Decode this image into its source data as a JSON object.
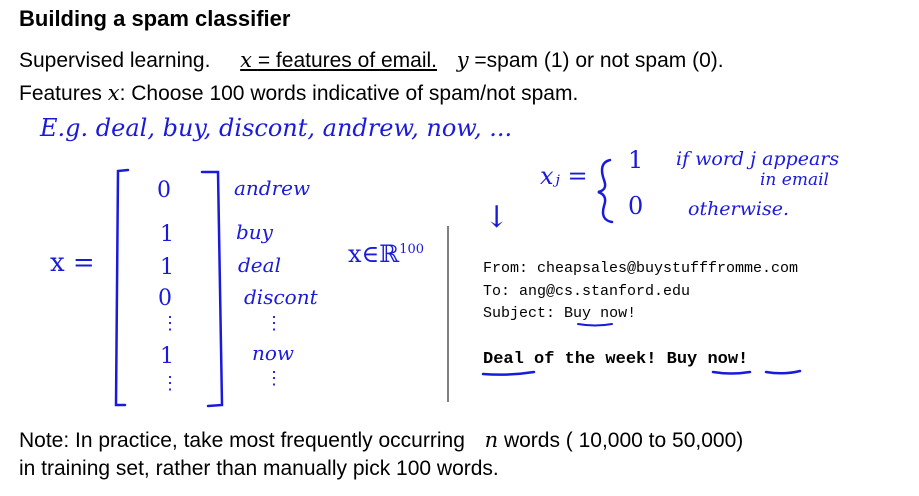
{
  "title": "Building a spam classifier",
  "line1": {
    "prefix": "Supervised learning.",
    "x_var": "x",
    "x_def": "= features of email.",
    "y_var": "y",
    "y_def": "=spam (1) or not spam (0)."
  },
  "line2": {
    "prefix": "Features",
    "var": "x",
    "suffix": ": Choose 100 words indicative of spam/not spam."
  },
  "handwritten": {
    "examples": "E.g. deal, buy, discont, andrew, now, ...",
    "x_label": "x =",
    "vector_entries": [
      "0",
      "1",
      "1",
      "0",
      "⋮",
      "1",
      "⋮"
    ],
    "vector_labels": [
      "andrew",
      "buy",
      "deal",
      "discont",
      "⋮",
      "now",
      "⋮"
    ],
    "membership": "x∈ℝ",
    "membership_exp": "100",
    "xj_label": "xⱼ =",
    "case1_value": "1",
    "case1_cond": "if word j appears",
    "case1_cond2": "in email",
    "case2_value": "0",
    "case2_cond": "otherwise.",
    "arrow": "↓"
  },
  "email": {
    "from": "From: cheapsales@buystufffromme.com",
    "to": "To: ang@cs.stanford.edu",
    "subject_prefix": "Subject:",
    "subject_word": "Buy",
    "subject_rest": "now!",
    "body_deal": "Deal",
    "body_mid": "of the week!",
    "body_buy": "Buy",
    "body_now": "now!"
  },
  "note": {
    "line1_prefix": "Note: In practice, take most frequently occurring",
    "var": "n",
    "line1_suffix": "words ( 10,000 to 50,000)",
    "line2": "in training set, rather than manually pick 100 words."
  }
}
